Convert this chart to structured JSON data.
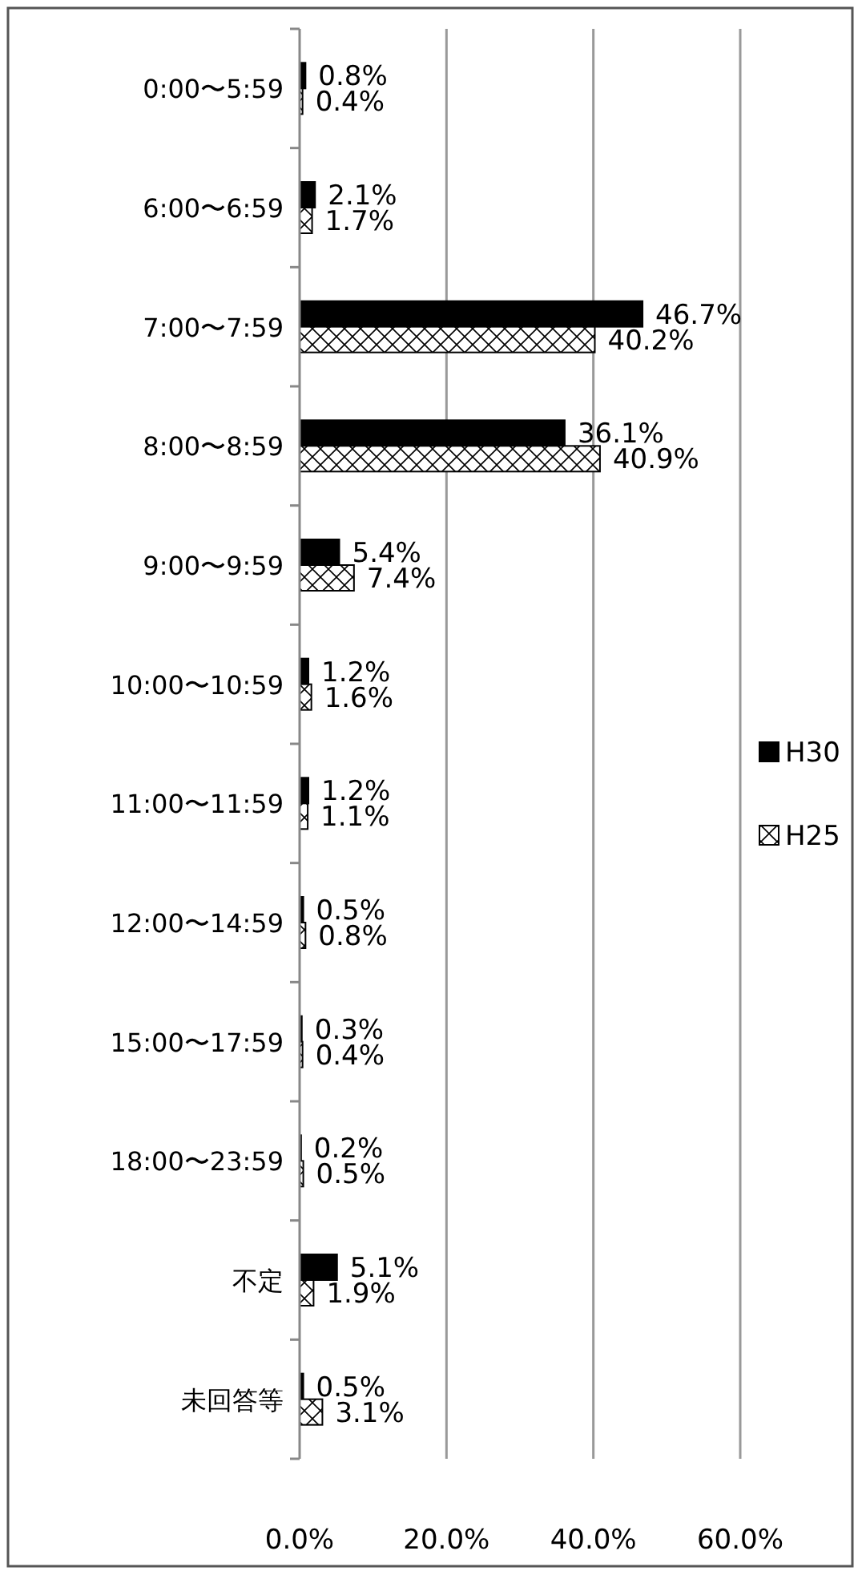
{
  "chart_data": {
    "type": "bar",
    "orientation": "horizontal",
    "categories": [
      "0:00〜5:59",
      "6:00〜6:59",
      "7:00〜7:59",
      "8:00〜8:59",
      "9:00〜9:59",
      "10:00〜10:59",
      "11:00〜11:59",
      "12:00〜14:59",
      "15:00〜17:59",
      "18:00〜23:59",
      "不定",
      "未回答等"
    ],
    "series": [
      {
        "name": "H30",
        "color": "#000000",
        "values": [
          0.8,
          2.1,
          46.7,
          36.1,
          5.4,
          1.2,
          1.2,
          0.5,
          0.3,
          0.2,
          5.1,
          0.5
        ],
        "value_labels": [
          "0.8%",
          "2.1%",
          "46.7%",
          "36.1%",
          "5.4%",
          "1.2%",
          "1.2%",
          "0.5%",
          "0.3%",
          "0.2%",
          "5.1%",
          "0.5%"
        ]
      },
      {
        "name": "H25",
        "color": "#ffffff",
        "values": [
          0.4,
          1.7,
          40.2,
          40.9,
          7.4,
          1.6,
          1.1,
          0.8,
          0.4,
          0.5,
          1.9,
          3.1
        ],
        "value_labels": [
          "0.4%",
          "1.7%",
          "40.2%",
          "40.9%",
          "7.4%",
          "1.6%",
          "1.1%",
          "0.8%",
          "0.4%",
          "0.5%",
          "1.9%",
          "3.1%"
        ]
      }
    ],
    "xlim": [
      0,
      60
    ],
    "xticks": [
      {
        "value": 0,
        "label": "0.0%"
      },
      {
        "value": 20,
        "label": "20.0%"
      },
      {
        "value": 40,
        "label": "40.0%"
      },
      {
        "value": 60,
        "label": "60.0%"
      }
    ],
    "grid": "x",
    "legend": "right"
  }
}
